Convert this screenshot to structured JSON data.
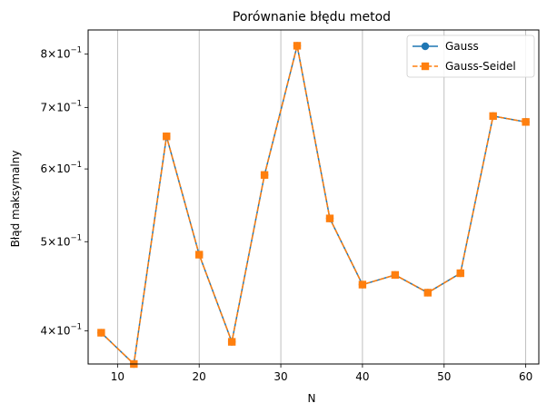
{
  "chart_data": {
    "type": "line",
    "title": "Porównanie błędu metod",
    "xlabel": "N",
    "ylabel": "Błąd maksymalny",
    "yscale": "log",
    "x": [
      8,
      12,
      16,
      20,
      24,
      28,
      32,
      36,
      40,
      44,
      48,
      52,
      56,
      60
    ],
    "xlim": [
      6.4,
      61.6
    ],
    "ylim": [
      0.368,
      0.85
    ],
    "xticks": [
      10,
      20,
      30,
      40,
      50,
      60
    ],
    "yticks": [
      {
        "value": 0.4,
        "mant": "4",
        "exp": "−1"
      },
      {
        "value": 0.5,
        "mant": "5",
        "exp": "−1"
      },
      {
        "value": 0.6,
        "mant": "6",
        "exp": "−1"
      },
      {
        "value": 0.7,
        "mant": "7",
        "exp": "−1"
      },
      {
        "value": 0.8,
        "mant": "8",
        "exp": "−1"
      }
    ],
    "grid": "x-major",
    "legend_position": "top-right",
    "series": [
      {
        "name": "Gauss",
        "color": "#1f77b4",
        "marker": "circle",
        "linestyle": "solid",
        "values": [
          0.398,
          0.368,
          0.651,
          0.484,
          0.389,
          0.591,
          0.817,
          0.53,
          0.449,
          0.46,
          0.44,
          0.462,
          0.685,
          0.675
        ]
      },
      {
        "name": "Gauss-Seidel",
        "color": "#ff7f0e",
        "marker": "square",
        "linestyle": "dashed",
        "values": [
          0.398,
          0.368,
          0.651,
          0.484,
          0.389,
          0.591,
          0.817,
          0.53,
          0.449,
          0.46,
          0.44,
          0.462,
          0.685,
          0.675
        ]
      }
    ]
  }
}
